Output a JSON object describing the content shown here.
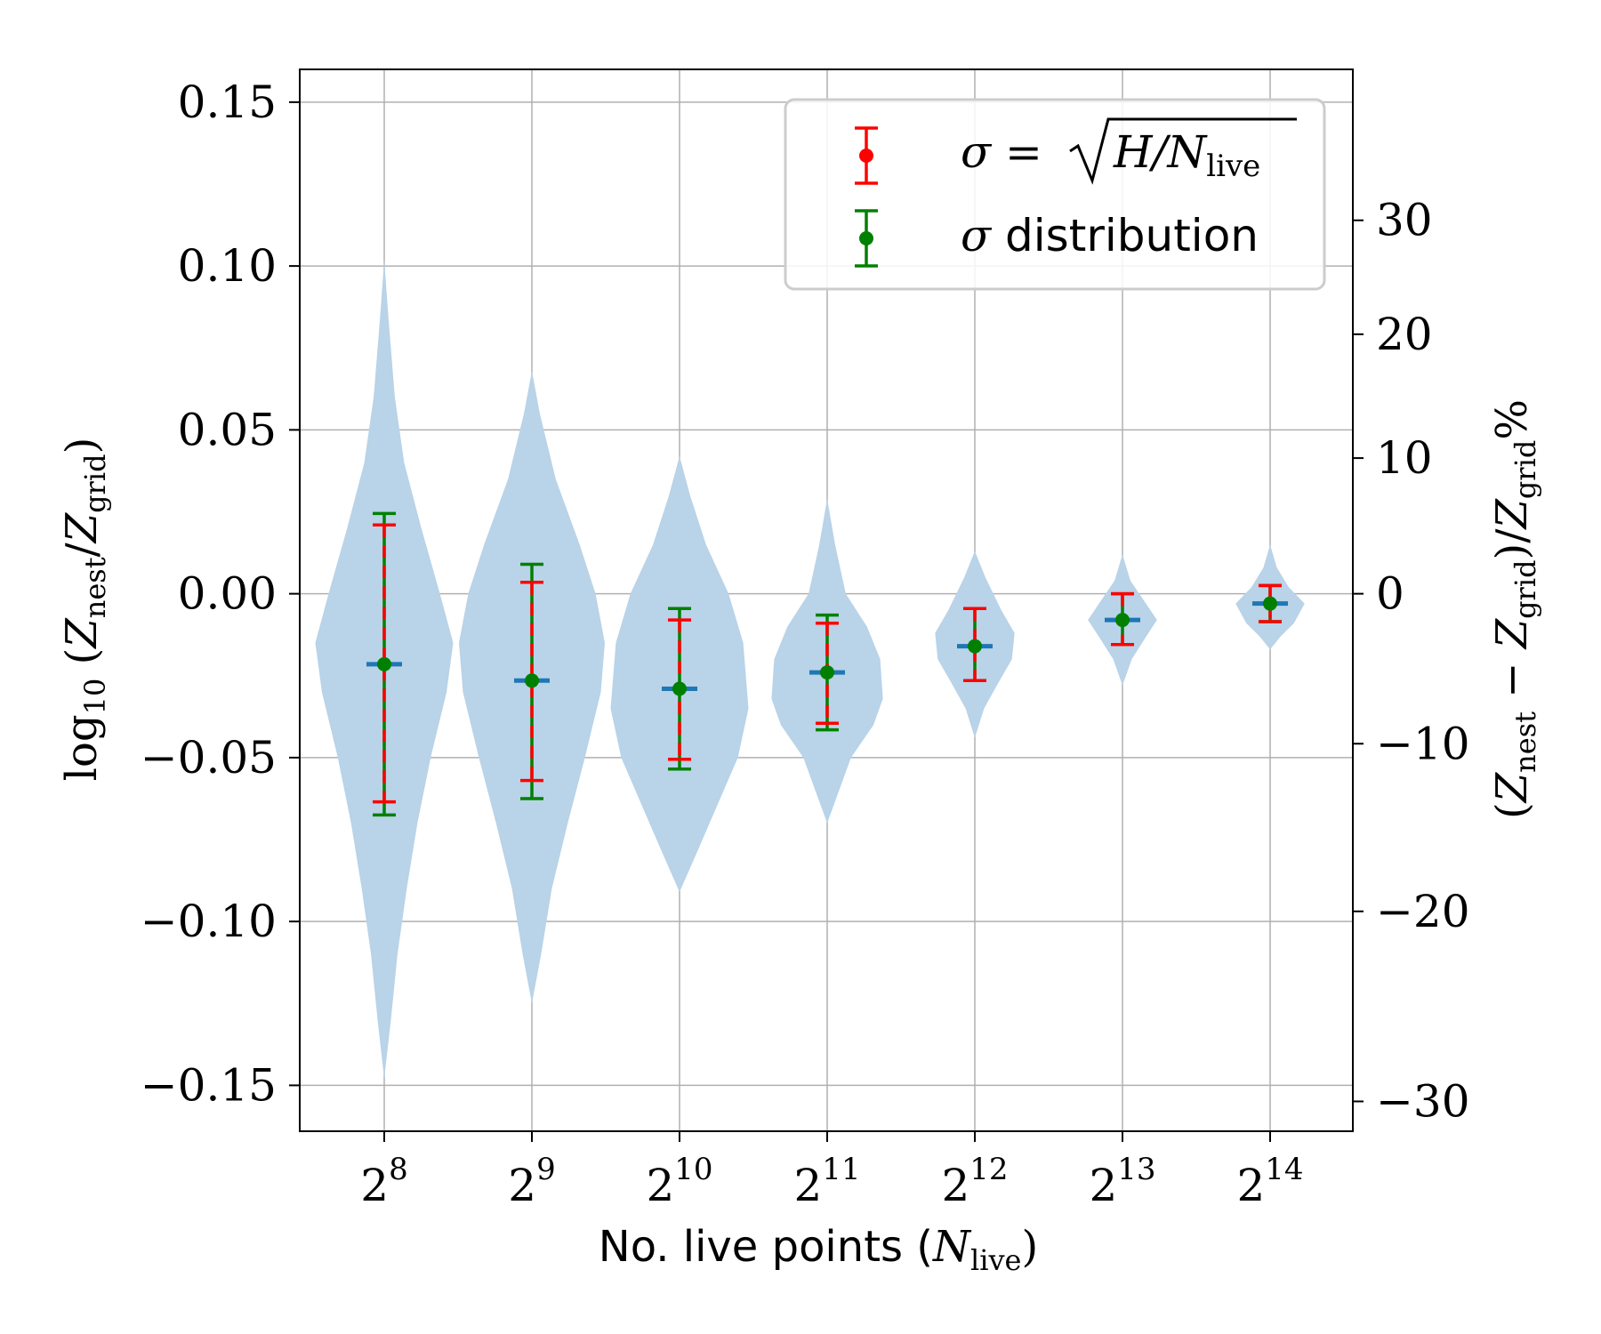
{
  "chart_data": {
    "type": "violin",
    "xlabel": {
      "prefix": "No. live points (",
      "var": "N",
      "sub": "live",
      "suffix": ")"
    },
    "ylabel_left": {
      "prefix": "log",
      "base": "10",
      "open": " (",
      "z1": "Z",
      "s1": "nest",
      "mid": "/",
      "z2": "Z",
      "s2": "grid",
      "close": ")"
    },
    "ylabel_right": {
      "open": "(",
      "z1": "Z",
      "s1": "nest",
      "minus": " − ",
      "z2": "Z",
      "s2": "grid",
      "mid": ")/",
      "z3": "Z",
      "s3": "grid",
      "pct": "%"
    },
    "x_base": "2",
    "x_exponents": [
      "8",
      "9",
      "10",
      "11",
      "12",
      "13",
      "14"
    ],
    "y_ticks": [
      {
        "value": 0.15,
        "label": "0.15"
      },
      {
        "value": 0.1,
        "label": "0.10"
      },
      {
        "value": 0.05,
        "label": "0.05"
      },
      {
        "value": 0.0,
        "label": "0.00"
      },
      {
        "value": -0.05,
        "label": "−0.05"
      },
      {
        "value": -0.1,
        "label": "−0.10"
      },
      {
        "value": -0.15,
        "label": "−0.15"
      }
    ],
    "ylim": [
      -0.164,
      0.16
    ],
    "y2_ticks": [
      {
        "value": 30,
        "label": "30"
      },
      {
        "value": 20,
        "label": "20"
      },
      {
        "value": 10,
        "label": "10"
      },
      {
        "value": 0,
        "label": "0"
      },
      {
        "value": -10,
        "label": "−10"
      },
      {
        "value": -20,
        "label": "−20"
      },
      {
        "value": -30,
        "label": "−30"
      }
    ],
    "grid": true,
    "legend_position": "top-right",
    "legend": [
      {
        "lhs": "σ",
        "eq": " = ",
        "rad": "H/N",
        "sub": "live",
        "color": "#ff0000"
      },
      {
        "lhs": "σ",
        "text": " distribution",
        "color": "#008000"
      }
    ],
    "series": [
      {
        "exp": 8,
        "median": -0.0215,
        "red": [
          -0.0635,
          0.021
        ],
        "green": [
          -0.0675,
          0.0245
        ],
        "violin_min": -0.148,
        "violin_max": 0.102,
        "profile": [
          [
            0.102,
            0
          ],
          [
            0.085,
            0.03
          ],
          [
            0.06,
            0.08
          ],
          [
            0.04,
            0.15
          ],
          [
            0.02,
            0.28
          ],
          [
            0.0,
            0.42
          ],
          [
            -0.015,
            0.52
          ],
          [
            -0.03,
            0.47
          ],
          [
            -0.05,
            0.35
          ],
          [
            -0.07,
            0.25
          ],
          [
            -0.09,
            0.17
          ],
          [
            -0.11,
            0.1
          ],
          [
            -0.13,
            0.05
          ],
          [
            -0.148,
            0
          ]
        ]
      },
      {
        "exp": 9,
        "median": -0.0265,
        "red": [
          -0.057,
          0.0035
        ],
        "green": [
          -0.0625,
          0.009
        ],
        "violin_min": -0.125,
        "violin_max": 0.068,
        "profile": [
          [
            0.068,
            0
          ],
          [
            0.055,
            0.06
          ],
          [
            0.035,
            0.18
          ],
          [
            0.015,
            0.36
          ],
          [
            0.0,
            0.48
          ],
          [
            -0.015,
            0.55
          ],
          [
            -0.03,
            0.52
          ],
          [
            -0.05,
            0.4
          ],
          [
            -0.07,
            0.27
          ],
          [
            -0.09,
            0.15
          ],
          [
            -0.11,
            0.07
          ],
          [
            -0.125,
            0
          ]
        ]
      },
      {
        "exp": 10,
        "median": -0.029,
        "red": [
          -0.0505,
          -0.008
        ],
        "green": [
          -0.0535,
          -0.0045
        ],
        "violin_min": -0.091,
        "violin_max": 0.042,
        "profile": [
          [
            0.042,
            0
          ],
          [
            0.03,
            0.08
          ],
          [
            0.015,
            0.2
          ],
          [
            0.0,
            0.37
          ],
          [
            -0.015,
            0.48
          ],
          [
            -0.035,
            0.52
          ],
          [
            -0.05,
            0.44
          ],
          [
            -0.065,
            0.28
          ],
          [
            -0.08,
            0.12
          ],
          [
            -0.091,
            0
          ]
        ]
      },
      {
        "exp": 11,
        "median": -0.024,
        "red": [
          -0.0395,
          -0.009
        ],
        "green": [
          -0.0415,
          -0.0065
        ],
        "violin_min": -0.07,
        "violin_max": 0.029,
        "profile": [
          [
            0.029,
            0
          ],
          [
            0.015,
            0.06
          ],
          [
            0.0,
            0.14
          ],
          [
            -0.01,
            0.3
          ],
          [
            -0.02,
            0.4
          ],
          [
            -0.032,
            0.42
          ],
          [
            -0.04,
            0.35
          ],
          [
            -0.05,
            0.18
          ],
          [
            -0.06,
            0.09
          ],
          [
            -0.07,
            0
          ]
        ]
      },
      {
        "exp": 12,
        "median": -0.016,
        "red": [
          -0.0265,
          -0.0045
        ],
        "green": [
          -0.0265,
          -0.0045
        ],
        "violin_min": -0.044,
        "violin_max": 0.013,
        "profile": [
          [
            0.013,
            0
          ],
          [
            0.005,
            0.08
          ],
          [
            -0.005,
            0.2
          ],
          [
            -0.012,
            0.3
          ],
          [
            -0.02,
            0.28
          ],
          [
            -0.027,
            0.18
          ],
          [
            -0.035,
            0.07
          ],
          [
            -0.044,
            0
          ]
        ]
      },
      {
        "exp": 13,
        "median": -0.008,
        "red": [
          -0.0155,
          0.0
        ],
        "green": [
          -0.0155,
          0.0
        ],
        "violin_min": -0.028,
        "violin_max": 0.012,
        "profile": [
          [
            0.012,
            0
          ],
          [
            0.004,
            0.06
          ],
          [
            -0.002,
            0.16
          ],
          [
            -0.008,
            0.26
          ],
          [
            -0.013,
            0.18
          ],
          [
            -0.02,
            0.07
          ],
          [
            -0.028,
            0
          ]
        ]
      },
      {
        "exp": 14,
        "median": -0.003,
        "red": [
          -0.0085,
          0.0025
        ],
        "green": [
          -0.0085,
          0.0025
        ],
        "violin_min": -0.017,
        "violin_max": 0.015,
        "profile": [
          [
            0.015,
            0
          ],
          [
            0.008,
            0.05
          ],
          [
            0.002,
            0.14
          ],
          [
            -0.003,
            0.26
          ],
          [
            -0.009,
            0.18
          ],
          [
            -0.013,
            0.08
          ],
          [
            -0.017,
            0
          ]
        ]
      }
    ]
  },
  "colors": {
    "violin": "#b9d3e8",
    "median": "#1f77b4",
    "red": "#ff0000",
    "green": "#008000",
    "grid": "#b0b0b0"
  }
}
